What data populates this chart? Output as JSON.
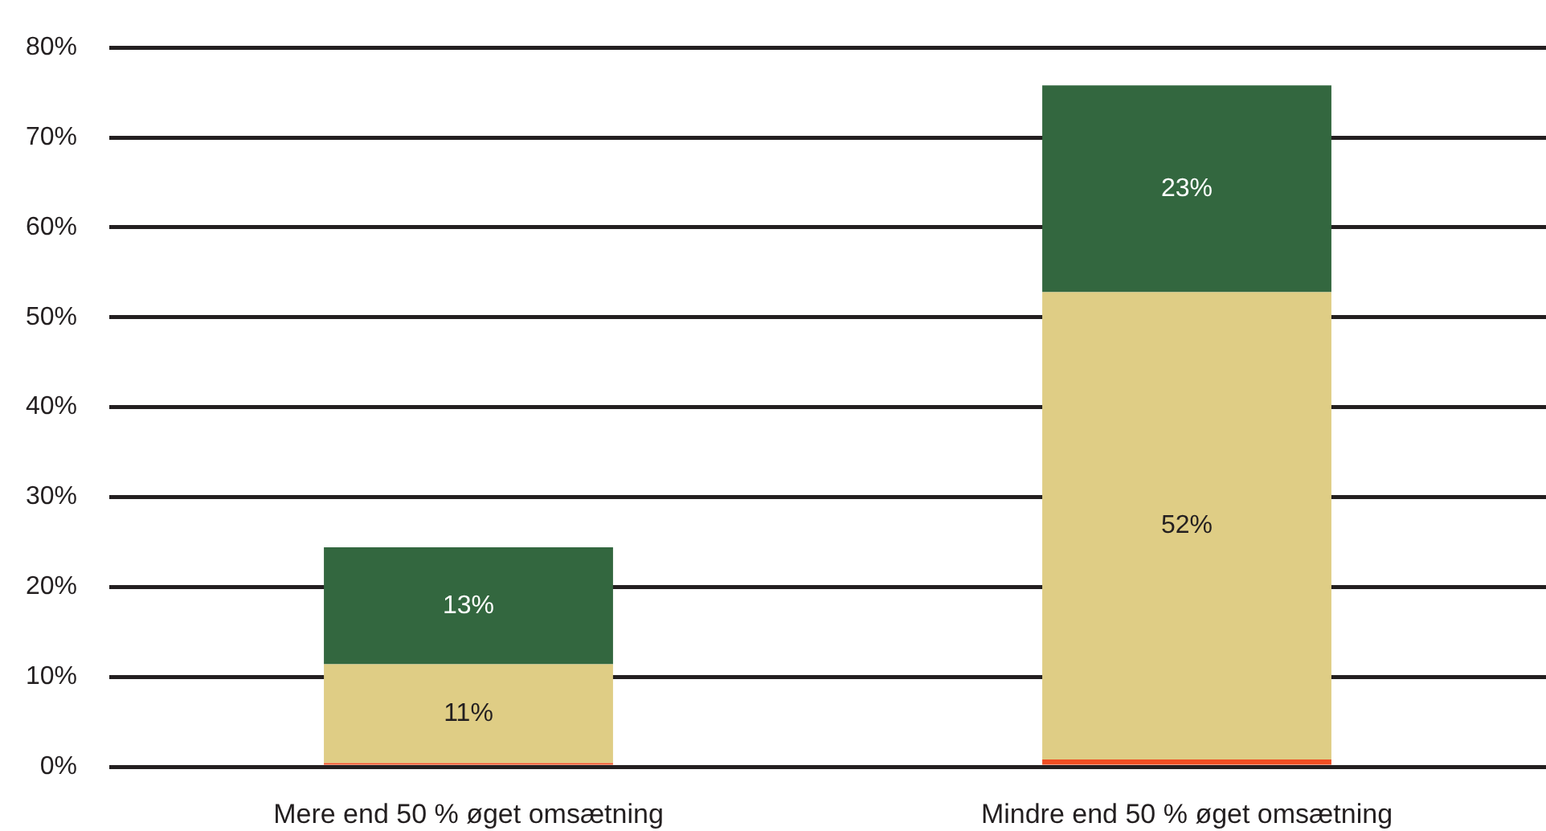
{
  "chart_data": {
    "type": "bar",
    "stacked": true,
    "categories": [
      "Mere end 50 % øget omsætning",
      "Mindre end 50 % øget omsætning"
    ],
    "series": [
      {
        "color": "#f04e23",
        "values": [
          0.4,
          0.8
        ]
      },
      {
        "color": "#dfcd85",
        "values": [
          11,
          52
        ],
        "value_labels": [
          "11%",
          "52%"
        ]
      },
      {
        "color": "#33673f",
        "values": [
          13,
          23
        ],
        "value_labels": [
          "13%",
          "23%"
        ]
      }
    ],
    "ylim": [
      0,
      80
    ],
    "yticks": [
      {
        "value": 0,
        "label": "0%"
      },
      {
        "value": 10,
        "label": "10%"
      },
      {
        "value": 20,
        "label": "20%"
      },
      {
        "value": 30,
        "label": "30%"
      },
      {
        "value": 40,
        "label": "40%"
      },
      {
        "value": 50,
        "label": "50%"
      },
      {
        "value": 60,
        "label": "60%"
      },
      {
        "value": 70,
        "label": "70%"
      },
      {
        "value": 80,
        "label": "80%"
      }
    ],
    "grid": "y"
  }
}
